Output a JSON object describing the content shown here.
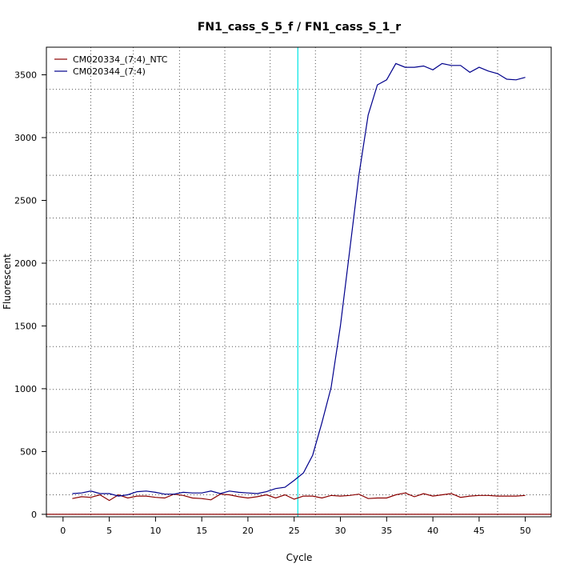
{
  "chart_data": {
    "type": "line",
    "title": "FN1_cass_S_5_f / FN1_cass_S_1_r",
    "xlabel": "Cycle",
    "ylabel": "Fluorescent",
    "xlim": [
      -1.8,
      52.8
    ],
    "ylim": [
      -20,
      3720
    ],
    "x_ticks": [
      0,
      5,
      10,
      15,
      20,
      25,
      30,
      35,
      40,
      45,
      50
    ],
    "y_ticks": [
      0,
      500,
      1000,
      1500,
      2000,
      2500,
      3000,
      3500
    ],
    "x_grid": [
      3,
      7.6,
      12.6,
      17.5,
      22.4,
      27.3,
      32.2,
      37.1,
      42,
      47
    ],
    "y_grid": [
      0,
      155,
      325,
      655,
      995,
      1335,
      1675,
      2020,
      2360,
      2700,
      3040,
      3385
    ],
    "threshold_cycle": 25.4,
    "baseline_value": 0,
    "legend_position": "top-left",
    "series": [
      {
        "name": "CM020334_(7:4)_NTC",
        "color": "#8b0000",
        "x": [
          1,
          2,
          3,
          4,
          5,
          6,
          7,
          8,
          9,
          10,
          11,
          12,
          13,
          14,
          15,
          16,
          17,
          18,
          19,
          20,
          21,
          22,
          23,
          24,
          25,
          26,
          27,
          28,
          29,
          30,
          31,
          32,
          33,
          34,
          35,
          36,
          37,
          38,
          39,
          40,
          41,
          42,
          43,
          44,
          45,
          46,
          47,
          48,
          49,
          50
        ],
        "y": [
          125,
          140,
          135,
          155,
          110,
          155,
          130,
          145,
          145,
          135,
          130,
          160,
          150,
          130,
          125,
          115,
          160,
          155,
          140,
          130,
          140,
          155,
          130,
          155,
          120,
          145,
          145,
          130,
          150,
          145,
          150,
          160,
          125,
          130,
          130,
          155,
          170,
          140,
          165,
          145,
          155,
          165,
          135,
          145,
          150,
          150,
          145,
          145,
          145,
          150
        ]
      },
      {
        "name": "CM020344_(7:4)",
        "color": "#00008b",
        "x": [
          1,
          2,
          3,
          4,
          5,
          6,
          7,
          8,
          9,
          10,
          11,
          12,
          13,
          14,
          15,
          16,
          17,
          18,
          19,
          20,
          21,
          22,
          23,
          24,
          25,
          26,
          27,
          28,
          29,
          30,
          31,
          32,
          33,
          34,
          35,
          36,
          37,
          38,
          39,
          40,
          41,
          42,
          43,
          44,
          45,
          46,
          47,
          48,
          49,
          50
        ],
        "y": [
          165,
          170,
          185,
          165,
          165,
          145,
          155,
          180,
          185,
          175,
          160,
          160,
          175,
          170,
          170,
          185,
          165,
          185,
          175,
          170,
          165,
          180,
          205,
          215,
          270,
          330,
          470,
          730,
          1010,
          1500,
          2100,
          2700,
          3180,
          3420,
          3460,
          3590,
          3560,
          3560,
          3570,
          3540,
          3590,
          3575,
          3575,
          3520,
          3560,
          3530,
          3510,
          3465,
          3460,
          3480
        ]
      }
    ]
  }
}
